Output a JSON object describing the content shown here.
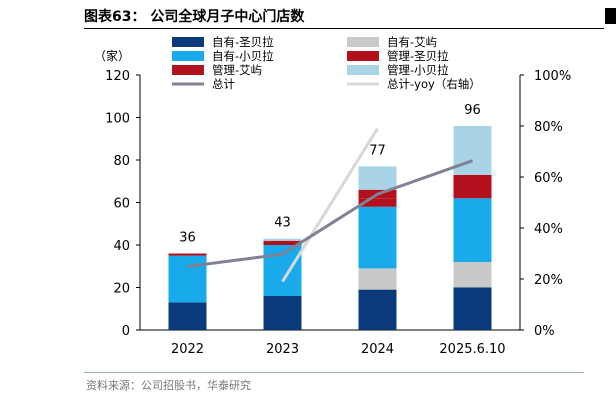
{
  "figure": {
    "title": "图表63： 公司全球月子中心门店数",
    "source": "资料来源：公司招股书，华泰研究"
  },
  "chart_data": {
    "type": "bar",
    "stacked": true,
    "categories": [
      "2022",
      "2023",
      "2024",
      "2025.6.10"
    ],
    "series": [
      {
        "name": "自有-圣贝拉",
        "color": "#0a3a7a",
        "values": [
          13,
          16,
          19,
          20
        ]
      },
      {
        "name": "自有-艾屿",
        "color": "#c9c9c9",
        "values": [
          0,
          0,
          10,
          12
        ]
      },
      {
        "name": "自有-小贝拉",
        "color": "#18aaea",
        "values": [
          22,
          24,
          29,
          30
        ]
      },
      {
        "name": "管理-圣贝拉",
        "color": "#b3101e",
        "values": [
          1,
          2,
          4,
          0
        ]
      },
      {
        "name": "管理-艾屿",
        "color": "#b3101e",
        "values": [
          0,
          0,
          4,
          11
        ]
      },
      {
        "name": "管理-小贝拉",
        "color": "#a8d4e6",
        "values": [
          0,
          1,
          11,
          23
        ]
      }
    ],
    "totals": {
      "name": "总计",
      "color": "#7f8194",
      "values": [
        36,
        43,
        77,
        96
      ],
      "labels": [
        "36",
        "43",
        "77",
        "96"
      ]
    },
    "yoy": {
      "name": "总计-yoy（右轴）",
      "color": "#d8d8d8",
      "values": [
        null,
        0.19,
        0.79,
        null
      ]
    },
    "y_unit": "（家）",
    "ylim": [
      0,
      120
    ],
    "yticks": [
      "0",
      "20",
      "40",
      "60",
      "80",
      "100",
      "120"
    ],
    "y2lim": [
      0,
      1.0
    ],
    "y2ticks": [
      "0%",
      "20%",
      "40%",
      "60%",
      "80%",
      "100%"
    ],
    "legend_position": "top-left"
  }
}
